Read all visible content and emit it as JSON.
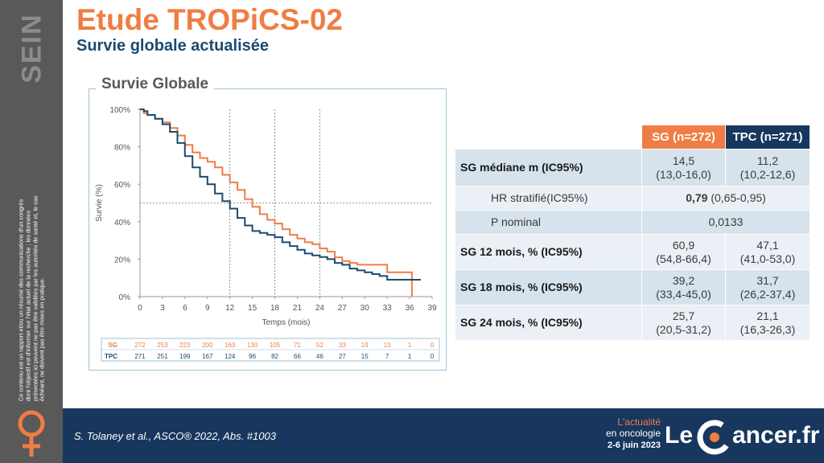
{
  "section": "SEIN",
  "disclaimer": "Ce contenu est un rapport et/ou un résumé des communications d'un congrès dont l'objectif est d'informer sur l'état actuel de la recherche ; les données présentées ici peuvent ne pas être validées par les autorités de santé et, le cas échéant, ne doivent pas être mises en pratique.",
  "title": "Etude TROPiCS-02",
  "subtitle": "Survie globale actualisée",
  "colors": {
    "sg": "#ef7d44",
    "tpc": "#1b4b72",
    "navy": "#17375e",
    "title": "#ef7d44"
  },
  "chart_data": {
    "type": "line",
    "title": "Survie Globale",
    "xlabel": "Temps (mois)",
    "ylabel": "Survie (%)",
    "xlim": [
      0,
      39
    ],
    "ylim": [
      0,
      100
    ],
    "xticks": [
      0,
      3,
      6,
      9,
      12,
      15,
      18,
      21,
      24,
      27,
      30,
      33,
      36,
      39
    ],
    "yticks": [
      "0%",
      "20%",
      "40%",
      "60%",
      "80%",
      "100%"
    ],
    "reference_lines": {
      "vertical_x": [
        12,
        18,
        24
      ],
      "horizontal_y": 50
    },
    "series": [
      {
        "name": "SG",
        "color": "#ef7d44",
        "x": [
          0,
          0.5,
          1,
          2,
          3,
          4,
          5,
          6,
          7,
          8,
          9,
          10,
          11,
          12,
          13,
          14,
          15,
          16,
          17,
          18,
          19,
          20,
          21,
          22,
          23,
          24,
          25,
          26,
          27,
          28,
          29,
          30,
          31,
          32,
          33,
          34,
          35,
          36.2,
          36.3
        ],
        "y": [
          100,
          98,
          97,
          95,
          93,
          90,
          86,
          81,
          77,
          74,
          72,
          69,
          65,
          61,
          57,
          52,
          48,
          44,
          41,
          39,
          36,
          33,
          31,
          29,
          28,
          25.7,
          24,
          21,
          19,
          18,
          17,
          17,
          17,
          17,
          13,
          13,
          13,
          13,
          0
        ]
      },
      {
        "name": "TPC",
        "color": "#1b4b72",
        "x": [
          0,
          0.5,
          1,
          2,
          3,
          4,
          5,
          6,
          7,
          8,
          9,
          10,
          11,
          12,
          13,
          14,
          15,
          16,
          17,
          18,
          19,
          20,
          21,
          22,
          23,
          24,
          25,
          26,
          27,
          28,
          29,
          30,
          31,
          32,
          33,
          34,
          35,
          36,
          37.5
        ],
        "y": [
          100,
          99,
          97,
          95,
          92,
          88,
          82,
          75,
          69,
          64,
          60,
          55,
          51,
          47,
          42,
          38,
          35,
          34,
          33,
          31.7,
          29,
          27,
          25,
          23,
          22,
          21.1,
          20,
          18,
          17,
          15,
          14,
          13,
          12,
          11,
          9,
          9,
          9,
          9,
          9
        ]
      }
    ],
    "risk_table": {
      "rows": [
        {
          "label": "SG",
          "values": [
            "272",
            "253",
            "223",
            "200",
            "163",
            "130",
            "105",
            "71",
            "52",
            "33",
            "19",
            "13",
            "1",
            "0"
          ]
        },
        {
          "label": "TPC",
          "values": [
            "271",
            "251",
            "199",
            "167",
            "124",
            "96",
            "82",
            "66",
            "46",
            "27",
            "15",
            "7",
            "1",
            "0"
          ]
        }
      ]
    }
  },
  "table": {
    "headers": [
      "",
      "SG (n=272)",
      "TPC (n=271)"
    ],
    "rows": [
      {
        "label": "SG médiane m (IC95%)",
        "sg_value": "14,5",
        "sg_ci": "(13,0-16,0)",
        "tpc_value": "11,2",
        "tpc_ci": "(10,2-12,6)"
      },
      {
        "label": "HR stratifié(IC95%)",
        "value_bold": "0,79",
        "value_rest": "(0,65-0,95)"
      },
      {
        "label": "P nominal",
        "value": "0,0133"
      },
      {
        "label": "SG 12 mois, % (IC95%)",
        "sg_value": "60,9",
        "sg_ci": "(54,8-66,4)",
        "tpc_value": "47,1",
        "tpc_ci": "(41,0-53,0)"
      },
      {
        "label": "SG 18 mois, % (IC95%)",
        "sg_value": "39,2",
        "sg_ci": "(33,4-45,0)",
        "tpc_value": "31,7",
        "tpc_ci": "(26,2-37,4)"
      },
      {
        "label": "SG 24 mois, % (IC95%)",
        "sg_value": "25,7",
        "sg_ci": "(20,5-31,2)",
        "tpc_value": "21,1",
        "tpc_ci": "(16,3-26,3)"
      }
    ]
  },
  "footer": {
    "citation": "S. Tolaney et al., ASCO® 2022, Abs. #1003",
    "event_line1": "L'actualité",
    "event_line2": "en oncologie",
    "event_date": "2-6 juin 2023",
    "brand_le": "Le",
    "brand_rest": "ancer.fr"
  }
}
